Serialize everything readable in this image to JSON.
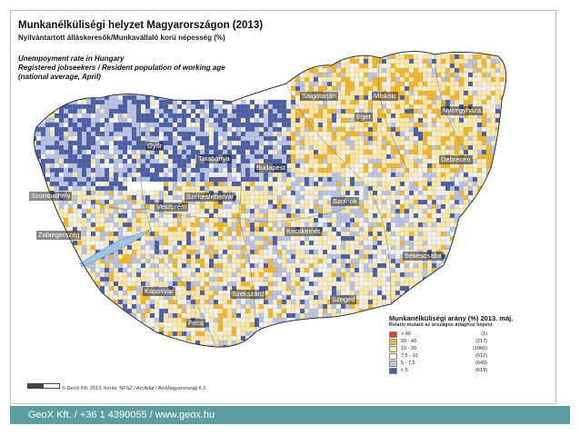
{
  "map": {
    "title": "Munkanélküliségi helyzet Magyarországon (2013)",
    "subtitle": "Nyilvántartott álláskeresők/Munkavállaló korú népesség (%)",
    "english_title": "Unempoyment rate in Hungary",
    "english_line2": "Registered jobseekers / Resident population of working age",
    "english_line3": "(national average, April)",
    "cities": [
      {
        "name": "Salgótarján"
      },
      {
        "name": "Miskolc"
      },
      {
        "name": "Nyíregyháza"
      },
      {
        "name": "Eger"
      },
      {
        "name": "Győr"
      },
      {
        "name": "Tatabánya"
      },
      {
        "name": "Budapest"
      },
      {
        "name": "Debrecen"
      },
      {
        "name": "Szombathely"
      },
      {
        "name": "Székesfehérvár"
      },
      {
        "name": "Veszprém"
      },
      {
        "name": "Szolnok"
      },
      {
        "name": "Zalaegerszeg"
      },
      {
        "name": "Kecskemét"
      },
      {
        "name": "Békéscsaba"
      },
      {
        "name": "Kaposvár"
      },
      {
        "name": "Szekszárd"
      },
      {
        "name": "Szeged"
      },
      {
        "name": "Pécs"
      }
    ]
  },
  "legend": {
    "title": "Munkanélküliségi arány (%) 2013. máj.",
    "subtitle": "Relatív mutató az országos átlaghoz képest",
    "items": [
      {
        "label": "> 40",
        "count": "(1)",
        "color": "#e0452b"
      },
      {
        "label": "20  -  40",
        "count": "(217)",
        "color": "#f2b62a"
      },
      {
        "label": "10  -  20",
        "count": "(1065)",
        "color": "#fbe9a8"
      },
      {
        "label": "7,5 - 10",
        "count": "(612)",
        "color": "#f4f2ec"
      },
      {
        "label": "5  -  7,5",
        "count": "(640)",
        "color": "#b8c4e6"
      },
      {
        "label": "< 5",
        "count": "(619)",
        "color": "#4a5ea8"
      }
    ]
  },
  "credits": "© GeoX Kft. 2013. forrás: NFSZ / ArcAdat / ArcMagyarország 6.3.",
  "footer": "GeoX Kft. / +36 1 4390055 / www.geox.hu"
}
